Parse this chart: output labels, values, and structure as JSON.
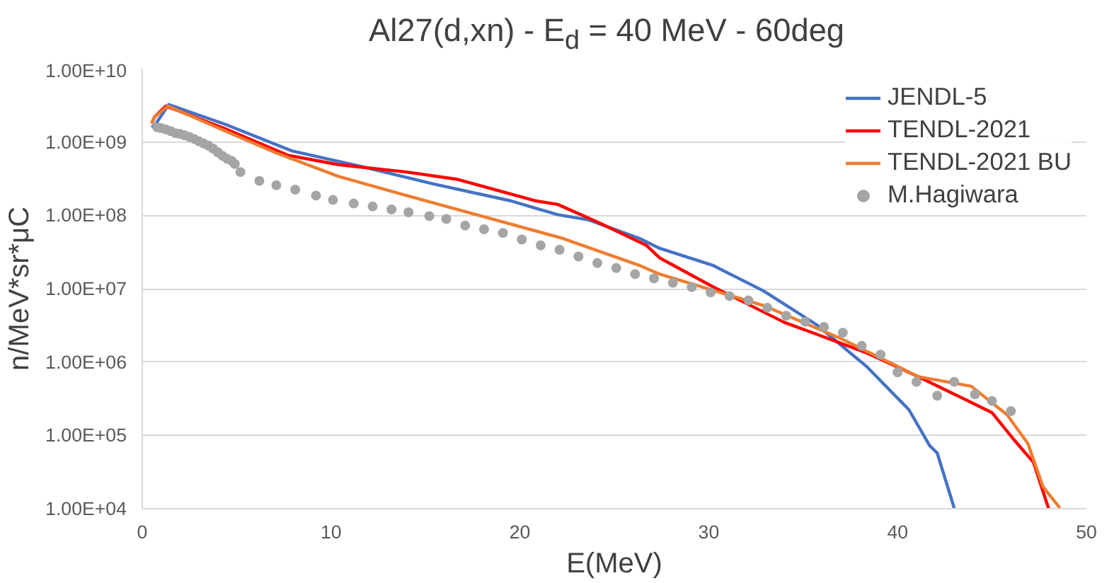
{
  "chart_data": {
    "type": "line",
    "title": "Al27(d,xn) - E$_{d}$ = 40 MeV - 60deg",
    "xlabel": "E(MeV)",
    "ylabel": "n/MeV*sr*μC",
    "log": "y",
    "grid": "y",
    "legend": "top right",
    "line_style": "solid",
    "xlim": [
      0,
      50
    ],
    "xticks": [
      0,
      10,
      20,
      30,
      40,
      50
    ],
    "ylim": [
      10000,
      10000000000
    ],
    "yticks": [
      {
        "value": 10000,
        "label": "1.00E+04"
      },
      {
        "value": 100000,
        "label": "1.00E+05"
      },
      {
        "value": 1000000,
        "label": "1.00E+06"
      },
      {
        "value": 10000000,
        "label": "1.00E+07"
      },
      {
        "value": 100000000,
        "label": "1.00E+08"
      },
      {
        "value": 1000000000,
        "label": "1.00E+09"
      },
      {
        "value": 10000000000,
        "label": "1.00E+10"
      }
    ],
    "series": [
      {
        "name": "JENDL-5",
        "type": "line",
        "color": "#4472c4",
        "x": [
          0.5,
          0.7,
          1.4,
          4.4,
          7.9,
          11.2,
          15.4,
          19.5,
          22,
          23.6,
          26.3,
          27.4,
          30.2,
          32.9,
          35.7,
          38.4,
          40.6,
          41.7,
          42.1,
          43.0
        ],
        "values": [
          1580000000.0,
          1740000000.0,
          3240000000.0,
          1740000000.0,
          759000000.0,
          490000000.0,
          269000000.0,
          158000000.0,
          102000000.0,
          87100000.0,
          49000000.0,
          35500000.0,
          20900000.0,
          9330000.0,
          3240000.0,
          851000.0,
          224000.0,
          72400.0,
          57500.0,
          10200.0
        ]
      },
      {
        "name": "TENDL-2021",
        "type": "line",
        "color": "#ff0000",
        "x": [
          0.5,
          0.65,
          1.25,
          4.4,
          7.7,
          10.4,
          14.0,
          16.7,
          20.8,
          22,
          24.1,
          26.7,
          27.4,
          30.2,
          34.0,
          35.7,
          38.4,
          41.1,
          43.9,
          45.0,
          46.1,
          47.2,
          48.0
        ],
        "values": [
          1780000000.0,
          2190000000.0,
          3090000000.0,
          1510000000.0,
          661000000.0,
          490000000.0,
          389000000.0,
          309000000.0,
          158000000.0,
          141000000.0,
          81300000.0,
          38900000.0,
          26300000.0,
          10700000.0,
          3470000.0,
          2400000.0,
          1320000.0,
          631000.0,
          282000.0,
          204000.0,
          91200.0,
          42700.0,
          10000.0
        ]
      },
      {
        "name": "TENDL-2021 BU",
        "type": "line",
        "color": "#ed7d31",
        "x": [
          0.5,
          0.65,
          1.36,
          4.4,
          7.1,
          10.4,
          14.0,
          18.1,
          22.2,
          26.3,
          27.4,
          32.9,
          37.0,
          41.1,
          43.9,
          45.8,
          46.9,
          47.7,
          48.6
        ],
        "values": [
          1780000000.0,
          2190000000.0,
          3090000000.0,
          1410000000.0,
          708000000.0,
          339000000.0,
          186000000.0,
          95500000.0,
          49000000.0,
          20900000.0,
          15800000.0,
          5890000.0,
          2090000.0,
          631000.0,
          468000.0,
          191000.0,
          77600.0,
          20000.0,
          10200.0
        ]
      },
      {
        "name": "M.Hagiwara",
        "type": "scatter",
        "marker": "circle",
        "color": "#a5a5a5",
        "x": [
          0.8,
          1,
          1.25,
          1.5,
          1.75,
          2,
          2.25,
          2.5,
          2.75,
          3,
          3.25,
          3.5,
          3.75,
          4,
          4.25,
          4.5,
          4.75,
          4.9,
          5.2,
          6.2,
          7.1,
          8.1,
          9.2,
          10.1,
          11.2,
          12.2,
          13.2,
          14.1,
          15.2,
          16.1,
          17.1,
          18.1,
          19.1,
          20.1,
          21.1,
          22.1,
          23.1,
          24.1,
          25.1,
          26.1,
          27.1,
          28.1,
          29.1,
          30.1,
          31.1,
          32.1,
          33.1,
          34.1,
          35.1,
          36.1,
          37.1,
          38.1,
          39.1,
          40.0,
          41.0,
          42.1,
          43.0,
          44.1,
          45.0,
          46.0
        ],
        "values": [
          1580000000.0,
          1550000000.0,
          1480000000.0,
          1410000000.0,
          1320000000.0,
          1290000000.0,
          1230000000.0,
          1170000000.0,
          1100000000.0,
          1020000000.0,
          955000000.0,
          891000000.0,
          813000000.0,
          724000000.0,
          646000000.0,
          589000000.0,
          550000000.0,
          501000000.0,
          389000000.0,
          295000000.0,
          257000000.0,
          224000000.0,
          186000000.0,
          162000000.0,
          145000000.0,
          132000000.0,
          120000000.0,
          110000000.0,
          97700000.0,
          89100000.0,
          72400000.0,
          64600000.0,
          57500000.0,
          46800000.0,
          38900000.0,
          33900000.0,
          27500000.0,
          22400000.0,
          19100000.0,
          15800000.0,
          13800000.0,
          12000000.0,
          10500000.0,
          8910000.0,
          7940000.0,
          6920000.0,
          5500000.0,
          4270000.0,
          3550000.0,
          3020000.0,
          2510000.0,
          1660000.0,
          1260000.0,
          724000.0,
          537000.0,
          347000.0,
          537000.0,
          363000.0,
          295000.0,
          214000.0
        ]
      }
    ]
  }
}
